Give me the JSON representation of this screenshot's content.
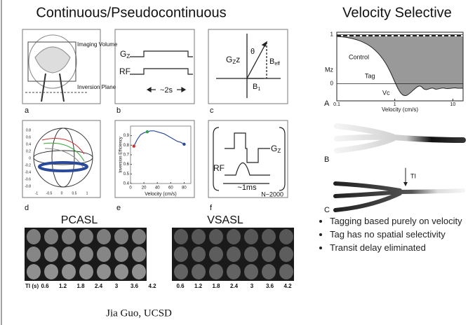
{
  "left_title": "Continuous/Pseudocontinuous",
  "right_title": "Velocity Selective",
  "panel_a": {
    "label": "a",
    "imaging_volume": "Imaging Volume",
    "inversion_plane": "Inversion Plane"
  },
  "panel_b": {
    "label": "b",
    "g": "G",
    "g_sub": "Z",
    "rf": "RF",
    "duration": "~2s"
  },
  "panel_c": {
    "label": "c",
    "g": "G",
    "g_sub": "Z",
    "g_tail": "z",
    "theta": "θ",
    "beff": "B",
    "beff_sub": "eff",
    "b1": "B",
    "b1_sub": "1"
  },
  "panel_d": {
    "label": "d",
    "yticks": [
      "0.8",
      "0.6",
      "0.4",
      "0.2",
      "0",
      "-0.2",
      "-0.4",
      "-0.6",
      "-0.8"
    ],
    "xticks": [
      "-1",
      "-0.5",
      "0",
      "0.5",
      "1"
    ]
  },
  "panel_e": {
    "label": "e",
    "chart_data": {
      "type": "line",
      "ylabel": "Inversion Efficiency",
      "xlabel": "Velocity (cm/s)",
      "xlim": [
        0,
        90
      ],
      "xticks": [
        0,
        20,
        40,
        60,
        80
      ],
      "ylim": [
        0.4,
        1.0
      ],
      "yticks": [
        0.4,
        0.5,
        0.6,
        0.7,
        0.8,
        0.9
      ],
      "series": [
        {
          "color": "#2b4a9a",
          "x": [
            5,
            10,
            15,
            20,
            25,
            30,
            35,
            40,
            45,
            50,
            55,
            60,
            65,
            70,
            75,
            80
          ],
          "values": [
            0.79,
            0.86,
            0.91,
            0.93,
            0.94,
            0.95,
            0.95,
            0.94,
            0.93,
            0.92,
            0.9,
            0.88,
            0.86,
            0.84,
            0.83,
            0.81
          ]
        }
      ],
      "points": [
        {
          "x": 5,
          "y": 0.79,
          "color": "#d32f2f"
        },
        {
          "x": 25,
          "y": 0.94,
          "color": "#2e9e4f"
        },
        {
          "x": 80,
          "y": 0.81,
          "color": "#2b4a9a"
        }
      ]
    }
  },
  "panel_f": {
    "label": "f",
    "g": "G",
    "g_sub": "Z",
    "rf": "RF",
    "duration": "~1ms",
    "repeat": "N~2000"
  },
  "panel_A": {
    "label": "A",
    "ylabel": "Mz",
    "control": "Control",
    "tag": "Tag",
    "vc": "Vc",
    "xlabel": "Velocity (cm/s)",
    "xlim": [
      0.1,
      15
    ],
    "log_x": true,
    "xticks": [
      0.1,
      1,
      10
    ],
    "ylim": [
      -0.35,
      1.05
    ],
    "yticks": [
      0,
      1
    ]
  },
  "panel_B": {
    "label": "B",
    "arrow": "TI"
  },
  "panel_C": {
    "label": "C"
  },
  "bullets": [
    "Tagging based purely on velocity",
    "Tag has no spatial selectivity",
    "Transit delay eliminated"
  ],
  "pcasl": {
    "title": "PCASL",
    "ti_label": "TI (s)",
    "ti": [
      0.6,
      1.2,
      1.8,
      2.4,
      3.0,
      3.6,
      4.2
    ]
  },
  "vsasl": {
    "title": "VSASL",
    "ti": [
      0.6,
      1.2,
      1.8,
      2.4,
      3.0,
      3.6,
      4.2
    ]
  },
  "footer": "Jia Guo, UCSD"
}
